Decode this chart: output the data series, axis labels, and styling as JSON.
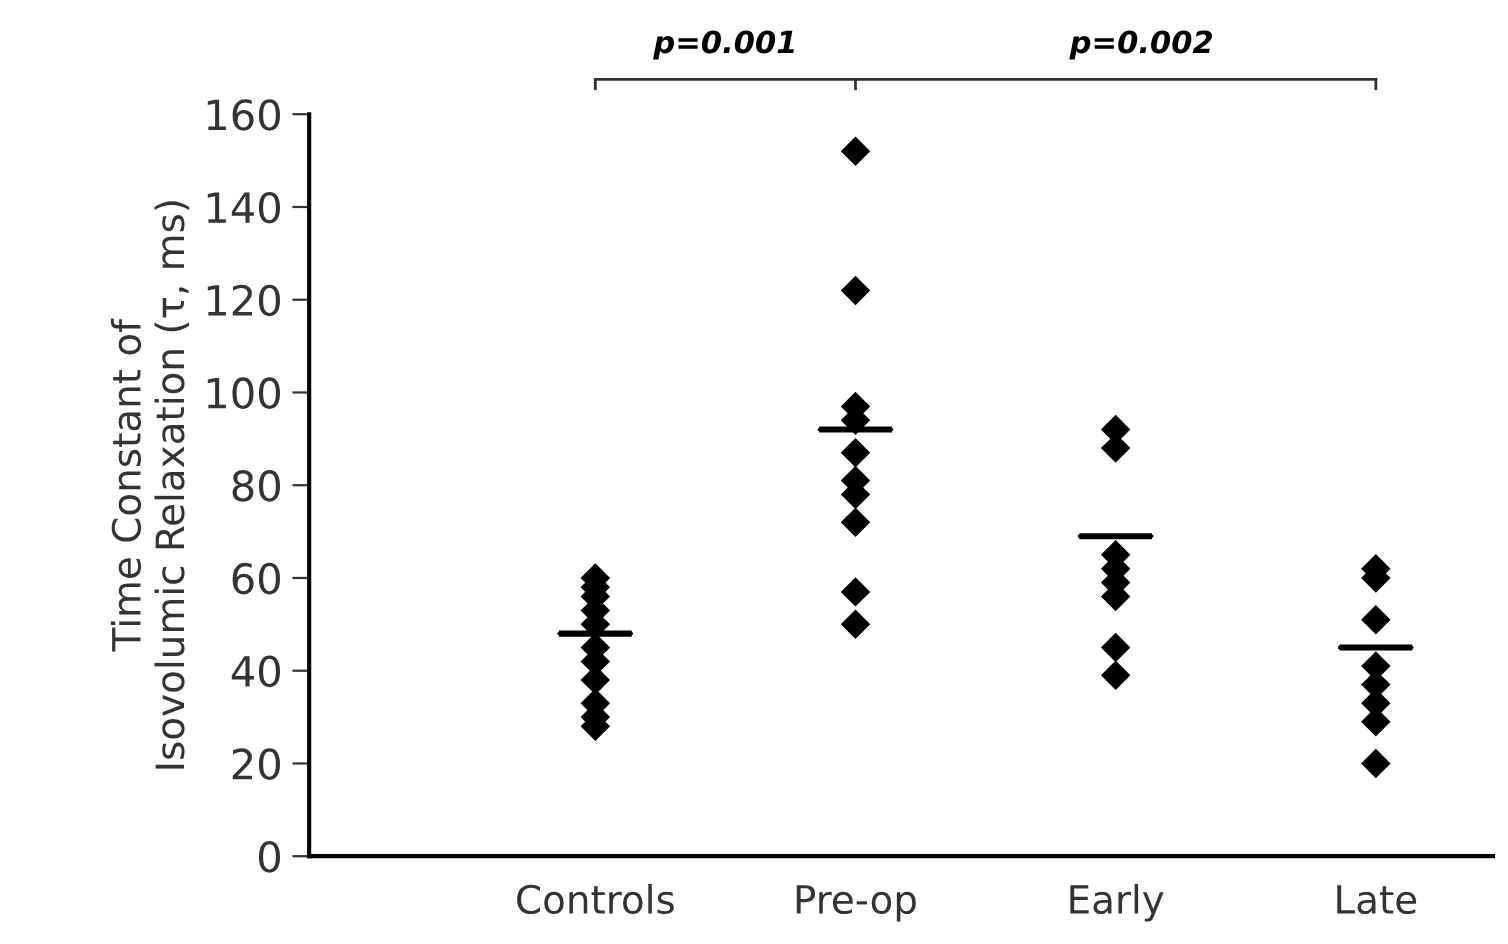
{
  "chart_data": {
    "type": "scatter",
    "ylabel": "Time Constant of\nIsovolumic Relaxation (τ, ms)",
    "categories": [
      "Controls",
      "Pre-op",
      "Early",
      "Late"
    ],
    "ylim": [
      0,
      160
    ],
    "yticks": [
      0,
      20,
      40,
      60,
      80,
      100,
      120,
      140,
      160
    ],
    "grid": false,
    "legend": false,
    "series": [
      {
        "marker": "diamond",
        "color": "#000000",
        "x": [
          "Controls",
          "Controls",
          "Controls",
          "Controls",
          "Controls",
          "Controls",
          "Controls",
          "Controls",
          "Controls",
          "Controls",
          "Controls",
          "Pre-op",
          "Pre-op",
          "Pre-op",
          "Pre-op",
          "Pre-op",
          "Pre-op",
          "Pre-op",
          "Pre-op",
          "Pre-op",
          "Pre-op",
          "Early",
          "Early",
          "Early",
          "Early",
          "Early",
          "Early",
          "Early",
          "Early",
          "Late",
          "Late",
          "Late",
          "Late",
          "Late",
          "Late",
          "Late",
          "Late"
        ],
        "values": [
          60,
          58,
          56,
          53,
          50,
          45,
          42,
          38,
          33,
          30,
          28,
          152,
          122,
          97,
          87,
          81,
          78,
          72,
          57,
          50,
          94,
          92,
          88,
          65,
          62,
          59,
          56,
          45,
          39,
          62,
          60,
          51,
          41,
          37,
          33,
          29,
          20
        ]
      },
      {
        "type": "box",
        "color": "#000000",
        "boxes": [
          {
            "low": 48,
            "q1": 48,
            "median": 48,
            "q3": 48,
            "high": 48
          },
          {
            "low": 92,
            "q1": 92,
            "median": 92,
            "q3": 92,
            "high": 92
          },
          {
            "low": 69,
            "q1": 69,
            "median": 69,
            "q3": 69,
            "high": 69
          },
          {
            "low": 45,
            "q1": 45,
            "median": 45,
            "q3": 45,
            "high": 45
          }
        ]
      }
    ],
    "annotations": [
      "p=0.001",
      "p=0.002"
    ]
  }
}
